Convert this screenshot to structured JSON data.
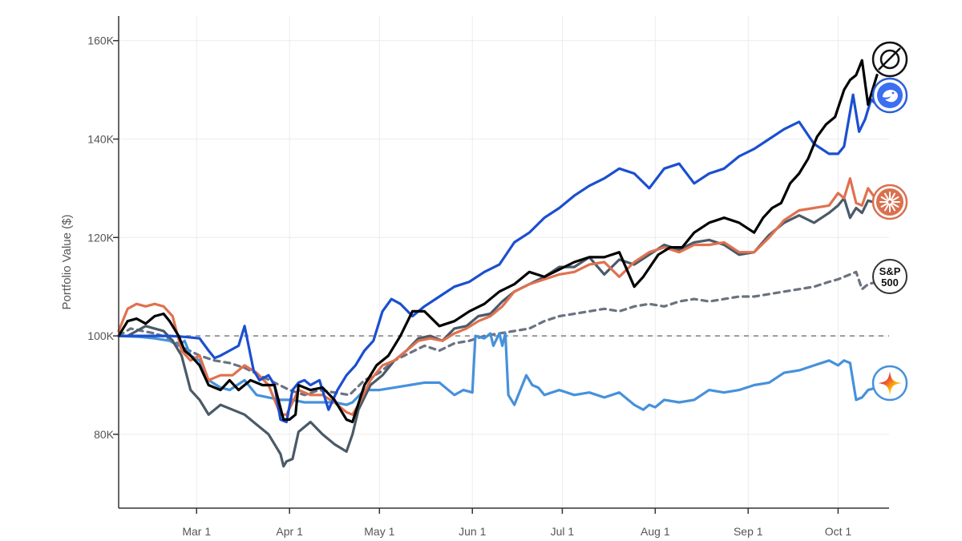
{
  "chart_data": {
    "type": "line",
    "ylabel": "Portfolio Value ($)",
    "xlabel": "",
    "x_tick_labels": [
      "Mar 1",
      "Apr 1",
      "May 1",
      "Jun 1",
      "Jul 1",
      "Aug 1",
      "Sep 1",
      "Oct 1"
    ],
    "x_tick_days": [
      14,
      45,
      75,
      106,
      136,
      167,
      198,
      228
    ],
    "x_range_days": [
      -12,
      245
    ],
    "y_tick_labels": [
      "80K",
      "100K",
      "120K",
      "140K",
      "160K"
    ],
    "y_tick_values": [
      80000,
      100000,
      120000,
      140000,
      160000
    ],
    "ylim": [
      65000,
      165000
    ],
    "baseline": 100000,
    "grid": true,
    "series": [
      {
        "color": "#1a4fd0",
        "dash": false,
        "icon": "deepseek-whale-icon",
        "x": [
          -12,
          -5,
          0,
          5,
          10,
          15,
          18,
          20,
          22,
          25,
          28,
          30,
          33,
          35,
          38,
          40,
          42,
          44,
          46,
          48,
          50,
          52,
          55,
          58,
          61,
          64,
          67,
          70,
          73,
          76,
          79,
          82,
          86,
          90,
          95,
          100,
          105,
          110,
          115,
          120,
          125,
          130,
          135,
          140,
          145,
          150,
          155,
          160,
          165,
          170,
          175,
          180,
          185,
          190,
          195,
          200,
          205,
          210,
          215,
          220,
          225,
          228,
          230,
          233,
          235,
          237,
          239,
          241
        ],
        "y": [
          100000,
          100000,
          100000,
          100000,
          99800,
          99500,
          97000,
          95500,
          96000,
          97000,
          98000,
          102000,
          93000,
          91000,
          92000,
          90000,
          83000,
          82500,
          89000,
          90500,
          91000,
          90000,
          91000,
          85000,
          89000,
          92000,
          94000,
          97000,
          99000,
          105000,
          107500,
          106500,
          104000,
          106000,
          108000,
          110000,
          111000,
          113000,
          114500,
          119000,
          121000,
          124000,
          126000,
          128500,
          130500,
          132000,
          134000,
          133000,
          130000,
          134000,
          135000,
          131000,
          133000,
          134000,
          136500,
          138000,
          140000,
          142000,
          143500,
          139000,
          137000,
          137000,
          138500,
          149000,
          141500,
          144000,
          148000,
          147000
        ]
      },
      {
        "color": "#000000",
        "dash": false,
        "icon": "grok-icon",
        "x": [
          -12,
          -9,
          -6,
          -3,
          0,
          3,
          5,
          8,
          10,
          12,
          15,
          18,
          22,
          25,
          28,
          32,
          36,
          40,
          43,
          45,
          47,
          48,
          52,
          56,
          60,
          62,
          64,
          66,
          70,
          74,
          78,
          82,
          86,
          90,
          95,
          100,
          105,
          110,
          115,
          120,
          125,
          130,
          135,
          140,
          145,
          150,
          155,
          160,
          163,
          168,
          172,
          176,
          180,
          185,
          190,
          195,
          200,
          203,
          206,
          209,
          212,
          215,
          218,
          221,
          224,
          227,
          230,
          232,
          234,
          236,
          238,
          241
        ],
        "y": [
          100000,
          103000,
          103500,
          102500,
          104000,
          104500,
          103000,
          100000,
          97000,
          96000,
          94000,
          90000,
          89000,
          91000,
          89000,
          91000,
          90000,
          90000,
          83000,
          83000,
          84000,
          90000,
          89000,
          89500,
          87000,
          85000,
          83000,
          82500,
          90000,
          94000,
          96000,
          100000,
          105000,
          105000,
          102000,
          103000,
          105000,
          106500,
          109000,
          110500,
          113000,
          112000,
          113500,
          115000,
          116000,
          116000,
          117000,
          110000,
          112000,
          116500,
          118000,
          118000,
          121000,
          123000,
          124000,
          123000,
          121000,
          124000,
          126000,
          127000,
          131000,
          133000,
          136000,
          140500,
          143000,
          144500,
          150000,
          152000,
          153000,
          156000,
          147000,
          153000
        ]
      },
      {
        "color": "#e0714f",
        "dash": false,
        "icon": "claude-starburst-icon",
        "x": [
          -12,
          -9,
          -6,
          -3,
          0,
          3,
          6,
          9,
          12,
          15,
          18,
          22,
          26,
          30,
          34,
          38,
          42,
          44,
          46,
          48,
          52,
          56,
          60,
          64,
          66,
          68,
          72,
          76,
          80,
          84,
          88,
          92,
          96,
          100,
          104,
          108,
          112,
          116,
          120,
          125,
          130,
          135,
          140,
          145,
          150,
          155,
          160,
          165,
          170,
          175,
          180,
          185,
          190,
          195,
          200,
          205,
          210,
          215,
          220,
          225,
          228,
          230,
          232,
          234,
          236,
          238,
          241
        ],
        "y": [
          101000,
          105500,
          106500,
          106000,
          106500,
          106000,
          104000,
          97000,
          95000,
          96000,
          91000,
          92000,
          92000,
          94000,
          92500,
          90000,
          84000,
          84000,
          86500,
          89000,
          88000,
          88000,
          86500,
          84500,
          84000,
          86000,
          91000,
          94000,
          95000,
          97000,
          99000,
          99500,
          99000,
          100500,
          101500,
          103000,
          104000,
          106000,
          109000,
          110500,
          111500,
          112500,
          113000,
          114500,
          115000,
          112000,
          115000,
          117000,
          118000,
          117000,
          118500,
          118500,
          119000,
          117000,
          117000,
          120000,
          123500,
          125500,
          126000,
          126500,
          129000,
          128000,
          132000,
          127000,
          126500,
          130000,
          127500
        ]
      },
      {
        "color": "#4a5a68",
        "dash": false,
        "icon": "",
        "x": [
          -12,
          -9,
          -6,
          -3,
          0,
          3,
          6,
          9,
          12,
          15,
          18,
          22,
          26,
          30,
          34,
          38,
          42,
          43,
          44,
          46,
          48,
          52,
          56,
          60,
          64,
          66,
          68,
          72,
          76,
          80,
          84,
          88,
          92,
          96,
          100,
          104,
          108,
          112,
          116,
          120,
          125,
          130,
          135,
          140,
          145,
          150,
          155,
          160,
          165,
          170,
          175,
          180,
          185,
          190,
          195,
          200,
          205,
          210,
          215,
          220,
          225,
          228,
          230,
          232,
          234,
          236,
          238,
          241
        ],
        "y": [
          100000,
          100000,
          101000,
          102000,
          101500,
          101000,
          99000,
          96000,
          89000,
          87000,
          84000,
          86000,
          85000,
          84000,
          82000,
          80000,
          76000,
          73500,
          74500,
          75000,
          80500,
          82500,
          80000,
          78000,
          76500,
          80000,
          85000,
          90000,
          92000,
          95000,
          97000,
          99500,
          100000,
          99000,
          101500,
          102000,
          104000,
          104500,
          107000,
          109000,
          110500,
          112000,
          114000,
          114000,
          116000,
          112500,
          115500,
          114500,
          116500,
          118500,
          117500,
          119000,
          119500,
          118500,
          116500,
          117000,
          120500,
          123000,
          124500,
          123000,
          125000,
          126500,
          128000,
          124000,
          126000,
          125000,
          127500,
          127000
        ]
      },
      {
        "color": "#4691dc",
        "dash": false,
        "icon": "gemini-sparkle-icon",
        "x": [
          -12,
          -5,
          0,
          5,
          8,
          10,
          12,
          15,
          18,
          22,
          25,
          30,
          34,
          38,
          42,
          46,
          50,
          55,
          60,
          64,
          66,
          70,
          75,
          80,
          85,
          90,
          95,
          100,
          103,
          106,
          107,
          110,
          112,
          113,
          115,
          116,
          117,
          118,
          120,
          124,
          126,
          128,
          130,
          135,
          140,
          145,
          150,
          155,
          160,
          163,
          165,
          167,
          170,
          175,
          180,
          185,
          190,
          195,
          200,
          205,
          210,
          215,
          220,
          225,
          228,
          230,
          232,
          234,
          236,
          238,
          241
        ],
        "y": [
          100000,
          99800,
          99500,
          99000,
          98000,
          99000,
          96000,
          95000,
          91000,
          89500,
          89000,
          91000,
          88000,
          87500,
          87000,
          87000,
          86500,
          86500,
          86500,
          86000,
          86500,
          89000,
          89000,
          89500,
          90000,
          90500,
          90500,
          88000,
          89000,
          88500,
          100000,
          99500,
          100500,
          98000,
          100500,
          98000,
          100500,
          88000,
          86000,
          92000,
          90000,
          89500,
          88000,
          89000,
          88000,
          88500,
          87500,
          88500,
          86000,
          85000,
          86000,
          85500,
          87000,
          86500,
          87000,
          89000,
          88500,
          89000,
          90000,
          90500,
          92500,
          93000,
          94000,
          95000,
          94000,
          95000,
          94500,
          87000,
          87500,
          89000,
          89500
        ]
      },
      {
        "color": "#6b7280",
        "dash": true,
        "icon": "sp500-badge",
        "x": [
          -12,
          -8,
          -4,
          0,
          5,
          10,
          15,
          20,
          25,
          30,
          35,
          40,
          45,
          50,
          55,
          60,
          65,
          70,
          75,
          80,
          85,
          90,
          95,
          100,
          105,
          110,
          115,
          120,
          125,
          130,
          135,
          140,
          145,
          150,
          155,
          160,
          165,
          170,
          175,
          180,
          185,
          190,
          195,
          200,
          205,
          210,
          215,
          220,
          225,
          228,
          230,
          232,
          234,
          236,
          238,
          241
        ],
        "y": [
          100000,
          101500,
          101000,
          100500,
          99500,
          97500,
          96000,
          95000,
          94500,
          93500,
          92000,
          90500,
          89000,
          88000,
          89000,
          88500,
          88000,
          91000,
          92500,
          95000,
          96500,
          98000,
          97000,
          98500,
          99000,
          100000,
          100500,
          101000,
          101500,
          103000,
          104000,
          104500,
          105000,
          105500,
          105000,
          106000,
          106500,
          106000,
          107000,
          107500,
          107000,
          107500,
          108000,
          108000,
          108500,
          109000,
          109500,
          110000,
          111000,
          111500,
          112000,
          112500,
          113000,
          109500,
          110500,
          111000
        ]
      }
    ],
    "legend_badges": {
      "grok": "grok-icon",
      "deepseek": "deepseek-whale-icon",
      "claude": "claude-starburst-icon",
      "sp500_line1": "S&P",
      "sp500_line2": "500",
      "gemini": "gemini-sparkle-icon"
    }
  }
}
